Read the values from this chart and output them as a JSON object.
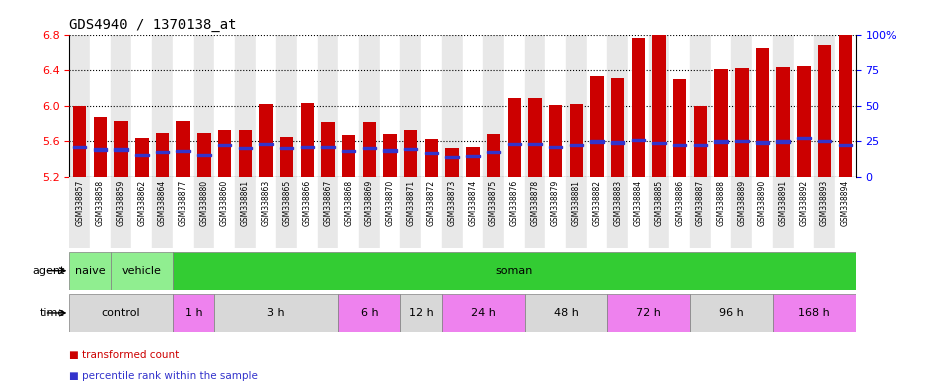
{
  "title": "GDS4940 / 1370138_at",
  "samples": [
    "GSM338857",
    "GSM338858",
    "GSM338859",
    "GSM338862",
    "GSM338864",
    "GSM338877",
    "GSM338880",
    "GSM338860",
    "GSM338861",
    "GSM338863",
    "GSM338865",
    "GSM338866",
    "GSM338867",
    "GSM338868",
    "GSM338869",
    "GSM338870",
    "GSM338871",
    "GSM338872",
    "GSM338873",
    "GSM338874",
    "GSM338875",
    "GSM338876",
    "GSM338878",
    "GSM338879",
    "GSM338881",
    "GSM338882",
    "GSM338883",
    "GSM338884",
    "GSM338885",
    "GSM338886",
    "GSM338887",
    "GSM338888",
    "GSM338889",
    "GSM338890",
    "GSM338891",
    "GSM338892",
    "GSM338893",
    "GSM338894"
  ],
  "bar_heights": [
    5.99,
    5.87,
    5.83,
    5.64,
    5.69,
    5.83,
    5.69,
    5.72,
    5.73,
    6.02,
    5.65,
    6.03,
    5.82,
    5.67,
    5.82,
    5.68,
    5.73,
    5.62,
    5.52,
    5.53,
    5.68,
    6.08,
    6.08,
    6.01,
    6.02,
    6.33,
    6.31,
    6.76,
    6.87,
    6.3,
    6.0,
    6.41,
    6.42,
    6.65,
    6.43,
    6.45,
    6.68,
    6.8
  ],
  "blue_marker_pos": [
    5.535,
    5.505,
    5.505,
    5.445,
    5.475,
    5.485,
    5.445,
    5.555,
    5.525,
    5.565,
    5.525,
    5.535,
    5.535,
    5.485,
    5.525,
    5.495,
    5.515,
    5.465,
    5.425,
    5.435,
    5.475,
    5.565,
    5.565,
    5.535,
    5.555,
    5.595,
    5.585,
    5.615,
    5.575,
    5.555,
    5.555,
    5.595,
    5.605,
    5.585,
    5.595,
    5.635,
    5.605,
    5.555
  ],
  "ylim_left": [
    5.2,
    6.8
  ],
  "ylim_right": [
    0,
    100
  ],
  "yticks_left": [
    5.2,
    5.6,
    6.0,
    6.4,
    6.8
  ],
  "yticks_right": [
    0,
    25,
    50,
    75,
    100
  ],
  "bar_color": "#cc0000",
  "blue_color": "#3333cc",
  "bar_width": 0.65,
  "agent_groups": [
    {
      "label": "naive",
      "start": 0,
      "end": 2,
      "color": "#90ee90"
    },
    {
      "label": "vehicle",
      "start": 2,
      "end": 5,
      "color": "#90ee90"
    },
    {
      "label": "soman",
      "start": 5,
      "end": 38,
      "color": "#33cc33"
    }
  ],
  "time_groups": [
    {
      "label": "control",
      "start": 0,
      "end": 5,
      "color": "#d8d8d8"
    },
    {
      "label": "1 h",
      "start": 5,
      "end": 7,
      "color": "#ee82ee"
    },
    {
      "label": "3 h",
      "start": 7,
      "end": 13,
      "color": "#d8d8d8"
    },
    {
      "label": "6 h",
      "start": 13,
      "end": 16,
      "color": "#ee82ee"
    },
    {
      "label": "12 h",
      "start": 16,
      "end": 18,
      "color": "#d8d8d8"
    },
    {
      "label": "24 h",
      "start": 18,
      "end": 22,
      "color": "#ee82ee"
    },
    {
      "label": "48 h",
      "start": 22,
      "end": 26,
      "color": "#d8d8d8"
    },
    {
      "label": "72 h",
      "start": 26,
      "end": 30,
      "color": "#ee82ee"
    },
    {
      "label": "96 h",
      "start": 30,
      "end": 34,
      "color": "#d8d8d8"
    },
    {
      "label": "168 h",
      "start": 34,
      "end": 38,
      "color": "#ee82ee"
    }
  ],
  "legend_labels": [
    "transformed count",
    "percentile rank within the sample"
  ],
  "legend_colors": [
    "#cc0000",
    "#3333cc"
  ],
  "xtick_bg_colors": [
    "#e8e8e8",
    "#ffffff"
  ]
}
